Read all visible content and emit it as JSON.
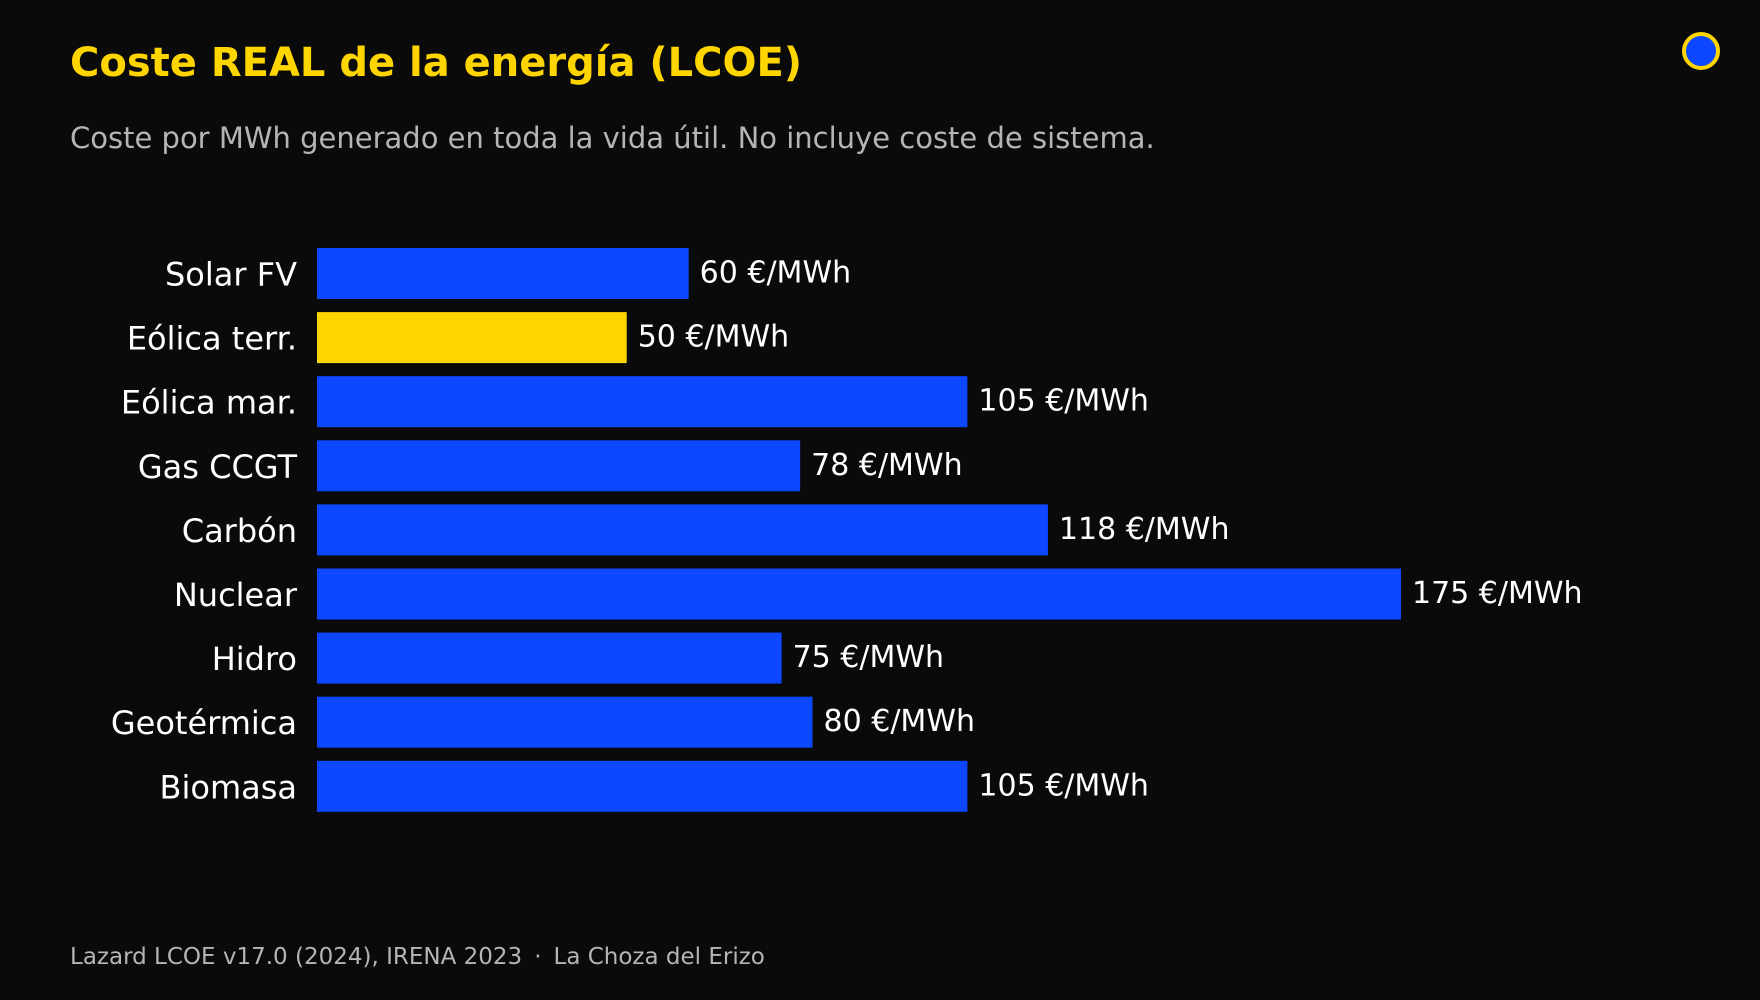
{
  "header": {
    "title": "Coste REAL de la energía (LCOE)",
    "subtitle": "Coste por MWh generado en toda la vida útil. No incluye coste de sistema."
  },
  "footer": {
    "source": "Lazard LCOE v17.0 (2024), IRENA 2023",
    "separator": "·",
    "brand": "La Choza del Erizo"
  },
  "colors": {
    "background": "#0a0a0a",
    "accent": "#ffd500",
    "bar_default": "#0d47ff",
    "text": "#ffffff",
    "muted": "#b5b5b5"
  },
  "logo_icon": "hedgehog-logo-icon",
  "chart_data": {
    "type": "bar",
    "orientation": "horizontal",
    "categories": [
      "Solar FV",
      "Eólica terr.",
      "Eólica mar.",
      "Gas CCGT",
      "Carbón",
      "Nuclear",
      "Hidro",
      "Geotérmica",
      "Biomasa"
    ],
    "values": [
      60,
      50,
      105,
      78,
      118,
      175,
      75,
      80,
      105
    ],
    "value_labels": [
      "60 €/MWh",
      "50 €/MWh",
      "105 €/MWh",
      "78 €/MWh",
      "118 €/MWh",
      "175 €/MWh",
      "75 €/MWh",
      "80 €/MWh",
      "105 €/MWh"
    ],
    "highlight_index": 1,
    "unit": "€/MWh",
    "xlim": [
      0,
      175
    ],
    "grid": false,
    "legend": false
  }
}
